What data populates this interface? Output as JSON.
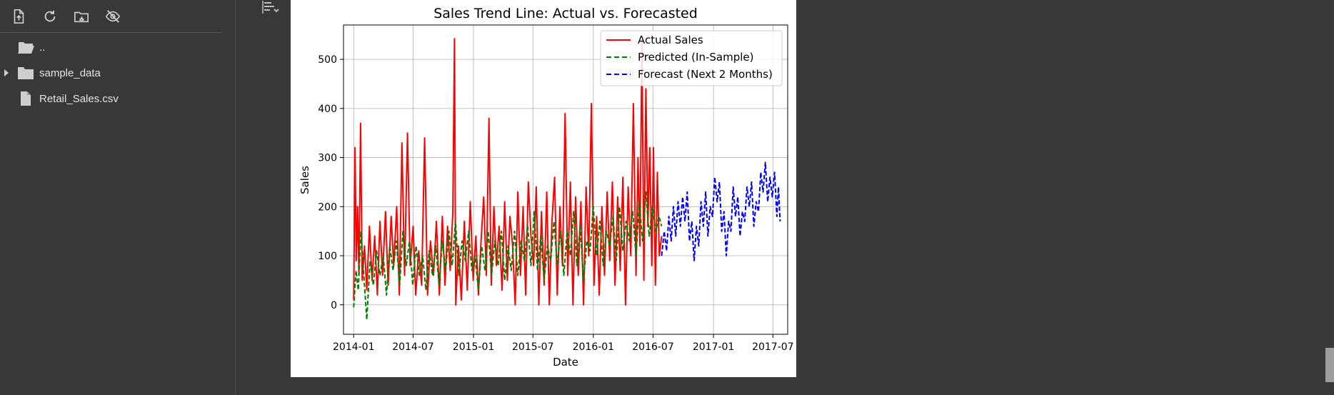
{
  "sidebar": {
    "toolbar": [
      {
        "name": "upload-file-icon"
      },
      {
        "name": "refresh-icon"
      },
      {
        "name": "mount-drive-icon"
      },
      {
        "name": "hide-files-icon"
      }
    ],
    "items": [
      {
        "label": "..",
        "icon": "folder-open-icon",
        "expandable": false
      },
      {
        "label": "sample_data",
        "icon": "folder-icon",
        "expandable": true
      },
      {
        "label": "Retail_Sales.csv",
        "icon": "file-icon",
        "expandable": false
      }
    ]
  },
  "colors": {
    "actual": "#ff0000",
    "predicted": "#008000",
    "forecast": "#0000ff"
  },
  "chart_data": {
    "type": "line",
    "title": "Sales Trend Line: Actual vs. Forecasted",
    "xlabel": "Date",
    "ylabel": "Sales",
    "x_ticks": [
      "2014-01",
      "2014-07",
      "2015-01",
      "2015-07",
      "2016-01",
      "2016-07",
      "2017-01",
      "2017-07"
    ],
    "y_ticks": [
      0,
      100,
      200,
      300,
      400,
      500
    ],
    "xlim": [
      "2013-12-01",
      "2017-08-15"
    ],
    "ylim": [
      -60,
      570
    ],
    "grid": true,
    "legend_position": "top-right",
    "series": [
      {
        "name": "Actual Sales",
        "style": "solid",
        "color": "#ff0000",
        "points": [
          [
            "2014-01-01",
            10
          ],
          [
            "2014-01-05",
            320
          ],
          [
            "2014-01-09",
            90
          ],
          [
            "2014-01-13",
            200
          ],
          [
            "2014-01-17",
            60
          ],
          [
            "2014-01-22",
            370
          ],
          [
            "2014-01-27",
            50
          ],
          [
            "2014-02-03",
            120
          ],
          [
            "2014-02-10",
            30
          ],
          [
            "2014-02-18",
            160
          ],
          [
            "2014-02-26",
            50
          ],
          [
            "2014-03-06",
            140
          ],
          [
            "2014-03-14",
            20
          ],
          [
            "2014-03-22",
            170
          ],
          [
            "2014-03-30",
            60
          ],
          [
            "2014-04-08",
            190
          ],
          [
            "2014-04-16",
            40
          ],
          [
            "2014-04-25",
            180
          ],
          [
            "2014-05-03",
            80
          ],
          [
            "2014-05-12",
            200
          ],
          [
            "2014-05-20",
            20
          ],
          [
            "2014-05-28",
            330
          ],
          [
            "2014-06-05",
            60
          ],
          [
            "2014-06-14",
            350
          ],
          [
            "2014-06-22",
            80
          ],
          [
            "2014-07-01",
            160
          ],
          [
            "2014-07-09",
            20
          ],
          [
            "2014-07-18",
            110
          ],
          [
            "2014-07-27",
            40
          ],
          [
            "2014-08-05",
            340
          ],
          [
            "2014-08-14",
            20
          ],
          [
            "2014-08-23",
            130
          ],
          [
            "2014-09-01",
            60
          ],
          [
            "2014-09-10",
            170
          ],
          [
            "2014-09-19",
            20
          ],
          [
            "2014-09-28",
            180
          ],
          [
            "2014-10-06",
            40
          ],
          [
            "2014-10-14",
            160
          ],
          [
            "2014-10-22",
            70
          ],
          [
            "2014-10-30",
            190
          ],
          [
            "2014-11-04",
            542
          ],
          [
            "2014-11-08",
            0
          ],
          [
            "2014-11-16",
            120
          ],
          [
            "2014-11-25",
            10
          ],
          [
            "2014-12-04",
            170
          ],
          [
            "2014-12-13",
            30
          ],
          [
            "2014-12-22",
            210
          ],
          [
            "2014-12-31",
            50
          ],
          [
            "2015-01-08",
            140
          ],
          [
            "2015-01-16",
            20
          ],
          [
            "2015-01-24",
            130
          ],
          [
            "2015-02-01",
            220
          ],
          [
            "2015-02-09",
            60
          ],
          [
            "2015-02-17",
            380
          ],
          [
            "2015-02-24",
            40
          ],
          [
            "2015-03-04",
            200
          ],
          [
            "2015-03-12",
            80
          ],
          [
            "2015-03-20",
            160
          ],
          [
            "2015-03-29",
            30
          ],
          [
            "2015-04-06",
            210
          ],
          [
            "2015-04-14",
            50
          ],
          [
            "2015-04-22",
            180
          ],
          [
            "2015-04-30",
            120
          ],
          [
            "2015-05-08",
            0
          ],
          [
            "2015-05-16",
            230
          ],
          [
            "2015-05-24",
            60
          ],
          [
            "2015-06-01",
            200
          ],
          [
            "2015-06-09",
            20
          ],
          [
            "2015-06-17",
            250
          ],
          [
            "2015-06-25",
            140
          ],
          [
            "2015-07-03",
            80
          ],
          [
            "2015-07-11",
            240
          ],
          [
            "2015-07-19",
            0
          ],
          [
            "2015-07-27",
            190
          ],
          [
            "2015-08-04",
            40
          ],
          [
            "2015-08-12",
            230
          ],
          [
            "2015-08-20",
            0
          ],
          [
            "2015-08-28",
            170
          ],
          [
            "2015-09-05",
            260
          ],
          [
            "2015-09-13",
            20
          ],
          [
            "2015-09-21",
            200
          ],
          [
            "2015-09-29",
            80
          ],
          [
            "2015-10-07",
            390
          ],
          [
            "2015-10-15",
            60
          ],
          [
            "2015-10-23",
            250
          ],
          [
            "2015-10-31",
            0
          ],
          [
            "2015-11-08",
            220
          ],
          [
            "2015-11-16",
            60
          ],
          [
            "2015-11-24",
            210
          ],
          [
            "2015-12-02",
            0
          ],
          [
            "2015-12-10",
            240
          ],
          [
            "2015-12-18",
            100
          ],
          [
            "2015-12-26",
            410
          ],
          [
            "2016-01-03",
            40
          ],
          [
            "2016-01-11",
            180
          ],
          [
            "2016-01-19",
            20
          ],
          [
            "2016-01-27",
            200
          ],
          [
            "2016-02-04",
            60
          ],
          [
            "2016-02-12",
            230
          ],
          [
            "2016-02-20",
            90
          ],
          [
            "2016-02-28",
            250
          ],
          [
            "2016-03-07",
            40
          ],
          [
            "2016-03-15",
            220
          ],
          [
            "2016-03-23",
            70
          ],
          [
            "2016-03-31",
            260
          ],
          [
            "2016-04-08",
            0
          ],
          [
            "2016-04-16",
            240
          ],
          [
            "2016-04-24",
            100
          ],
          [
            "2016-05-02",
            410
          ],
          [
            "2016-05-10",
            60
          ],
          [
            "2016-05-16",
            300
          ],
          [
            "2016-05-22",
            120
          ],
          [
            "2016-05-28",
            540
          ],
          [
            "2016-06-03",
            50
          ],
          [
            "2016-06-09",
            440
          ],
          [
            "2016-06-15",
            160
          ],
          [
            "2016-06-21",
            320
          ],
          [
            "2016-06-27",
            80
          ],
          [
            "2016-07-02",
            320
          ],
          [
            "2016-07-08",
            40
          ],
          [
            "2016-07-14",
            270
          ],
          [
            "2016-07-20",
            100
          ],
          [
            "2016-07-27",
            140
          ]
        ]
      },
      {
        "name": "Predicted (In-Sample)",
        "style": "dashed",
        "color": "#008000",
        "points": [
          [
            "2014-01-01",
            -5
          ],
          [
            "2014-01-08",
            70
          ],
          [
            "2014-01-15",
            30
          ],
          [
            "2014-01-23",
            150
          ],
          [
            "2014-02-01",
            60
          ],
          [
            "2014-02-10",
            -30
          ],
          [
            "2014-02-20",
            90
          ],
          [
            "2014-03-02",
            40
          ],
          [
            "2014-03-12",
            110
          ],
          [
            "2014-03-22",
            60
          ],
          [
            "2014-04-01",
            100
          ],
          [
            "2014-04-11",
            20
          ],
          [
            "2014-04-21",
            120
          ],
          [
            "2014-05-01",
            70
          ],
          [
            "2014-05-11",
            130
          ],
          [
            "2014-05-21",
            40
          ],
          [
            "2014-05-31",
            150
          ],
          [
            "2014-06-10",
            80
          ],
          [
            "2014-06-20",
            130
          ],
          [
            "2014-06-30",
            40
          ],
          [
            "2014-07-10",
            120
          ],
          [
            "2014-07-20",
            60
          ],
          [
            "2014-07-30",
            100
          ],
          [
            "2014-08-09",
            30
          ],
          [
            "2014-08-19",
            110
          ],
          [
            "2014-08-29",
            60
          ],
          [
            "2014-09-08",
            120
          ],
          [
            "2014-09-18",
            40
          ],
          [
            "2014-09-28",
            130
          ],
          [
            "2014-10-08",
            70
          ],
          [
            "2014-10-18",
            150
          ],
          [
            "2014-10-28",
            80
          ],
          [
            "2014-11-07",
            170
          ],
          [
            "2014-11-17",
            60
          ],
          [
            "2014-11-27",
            130
          ],
          [
            "2014-12-07",
            90
          ],
          [
            "2014-12-17",
            150
          ],
          [
            "2014-12-27",
            70
          ],
          [
            "2015-01-06",
            100
          ],
          [
            "2015-01-16",
            30
          ],
          [
            "2015-01-26",
            120
          ],
          [
            "2015-02-05",
            70
          ],
          [
            "2015-02-15",
            150
          ],
          [
            "2015-02-25",
            60
          ],
          [
            "2015-03-07",
            130
          ],
          [
            "2015-03-17",
            80
          ],
          [
            "2015-03-27",
            150
          ],
          [
            "2015-04-06",
            50
          ],
          [
            "2015-04-16",
            120
          ],
          [
            "2015-04-26",
            70
          ],
          [
            "2015-05-06",
            150
          ],
          [
            "2015-05-16",
            60
          ],
          [
            "2015-05-26",
            130
          ],
          [
            "2015-06-05",
            90
          ],
          [
            "2015-06-15",
            160
          ],
          [
            "2015-06-25",
            80
          ],
          [
            "2015-07-05",
            190
          ],
          [
            "2015-07-15",
            70
          ],
          [
            "2015-07-25",
            140
          ],
          [
            "2015-08-04",
            50
          ],
          [
            "2015-08-14",
            120
          ],
          [
            "2015-08-24",
            90
          ],
          [
            "2015-09-03",
            170
          ],
          [
            "2015-09-13",
            80
          ],
          [
            "2015-09-23",
            150
          ],
          [
            "2015-10-03",
            60
          ],
          [
            "2015-10-13",
            150
          ],
          [
            "2015-10-23",
            100
          ],
          [
            "2015-11-02",
            190
          ],
          [
            "2015-11-12",
            80
          ],
          [
            "2015-11-22",
            160
          ],
          [
            "2015-12-02",
            50
          ],
          [
            "2015-12-12",
            130
          ],
          [
            "2015-12-22",
            110
          ],
          [
            "2016-01-01",
            200
          ],
          [
            "2016-01-11",
            100
          ],
          [
            "2016-01-21",
            170
          ],
          [
            "2016-01-31",
            80
          ],
          [
            "2016-02-10",
            150
          ],
          [
            "2016-02-20",
            120
          ],
          [
            "2016-03-01",
            180
          ],
          [
            "2016-03-11",
            90
          ],
          [
            "2016-03-21",
            200
          ],
          [
            "2016-03-31",
            110
          ],
          [
            "2016-04-10",
            170
          ],
          [
            "2016-04-20",
            130
          ],
          [
            "2016-04-30",
            190
          ],
          [
            "2016-05-10",
            100
          ],
          [
            "2016-05-20",
            210
          ],
          [
            "2016-05-30",
            130
          ],
          [
            "2016-06-09",
            230
          ],
          [
            "2016-06-19",
            140
          ],
          [
            "2016-06-29",
            200
          ],
          [
            "2016-07-09",
            150
          ],
          [
            "2016-07-19",
            180
          ],
          [
            "2016-07-27",
            160
          ]
        ]
      },
      {
        "name": "Forecast (Next 2 Months)",
        "style": "dashed",
        "color": "#0000ff",
        "points": [
          [
            "2016-07-27",
            100
          ],
          [
            "2016-08-04",
            150
          ],
          [
            "2016-08-11",
            110
          ],
          [
            "2016-08-18",
            180
          ],
          [
            "2016-08-25",
            130
          ],
          [
            "2016-09-01",
            200
          ],
          [
            "2016-09-08",
            140
          ],
          [
            "2016-09-15",
            210
          ],
          [
            "2016-09-22",
            160
          ],
          [
            "2016-09-29",
            220
          ],
          [
            "2016-10-06",
            170
          ],
          [
            "2016-10-13",
            230
          ],
          [
            "2016-10-20",
            130
          ],
          [
            "2016-10-27",
            170
          ],
          [
            "2016-11-03",
            90
          ],
          [
            "2016-11-10",
            160
          ],
          [
            "2016-11-17",
            120
          ],
          [
            "2016-11-24",
            210
          ],
          [
            "2016-12-01",
            160
          ],
          [
            "2016-12-08",
            230
          ],
          [
            "2016-12-15",
            140
          ],
          [
            "2016-12-22",
            200
          ],
          [
            "2016-12-29",
            180
          ],
          [
            "2017-01-05",
            260
          ],
          [
            "2017-01-12",
            210
          ],
          [
            "2017-01-19",
            250
          ],
          [
            "2017-01-26",
            150
          ],
          [
            "2017-02-02",
            190
          ],
          [
            "2017-02-09",
            100
          ],
          [
            "2017-02-16",
            170
          ],
          [
            "2017-02-23",
            150
          ],
          [
            "2017-03-02",
            240
          ],
          [
            "2017-03-09",
            180
          ],
          [
            "2017-03-16",
            220
          ],
          [
            "2017-03-23",
            140
          ],
          [
            "2017-03-30",
            190
          ],
          [
            "2017-04-06",
            170
          ],
          [
            "2017-04-13",
            240
          ],
          [
            "2017-04-20",
            200
          ],
          [
            "2017-04-27",
            250
          ],
          [
            "2017-05-04",
            160
          ],
          [
            "2017-05-11",
            210
          ],
          [
            "2017-05-18",
            190
          ],
          [
            "2017-05-25",
            270
          ],
          [
            "2017-06-01",
            230
          ],
          [
            "2017-06-08",
            290
          ],
          [
            "2017-06-15",
            210
          ],
          [
            "2017-06-22",
            260
          ],
          [
            "2017-06-29",
            220
          ],
          [
            "2017-07-06",
            270
          ],
          [
            "2017-07-13",
            180
          ],
          [
            "2017-07-18",
            240
          ],
          [
            "2017-07-23",
            170
          ]
        ]
      }
    ]
  }
}
